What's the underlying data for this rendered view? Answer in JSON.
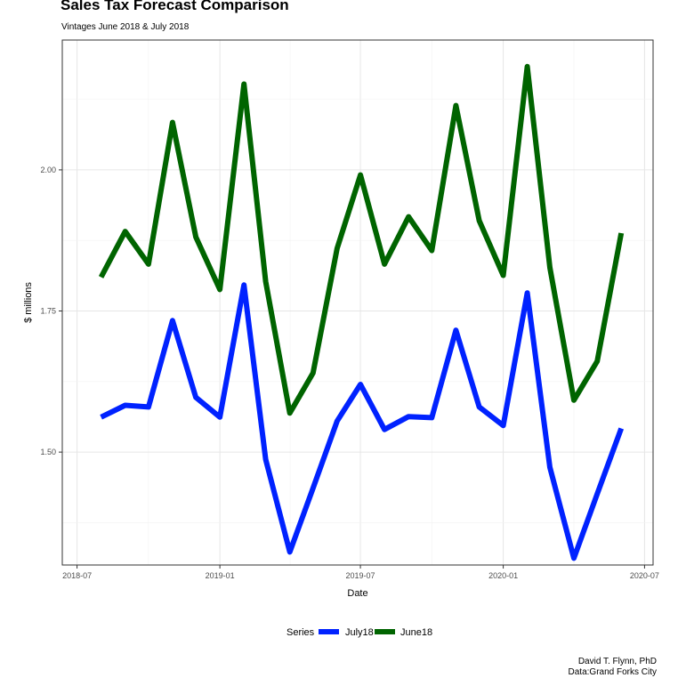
{
  "chart_data": {
    "type": "line",
    "title": "Sales Tax Forecast Comparison",
    "subtitle": "Vintages June 2018 & July 2018",
    "xlabel": "Date",
    "ylabel": "$ millions",
    "x_ticks": [
      "2018-07",
      "2019-01",
      "2019-07",
      "2020-01",
      "2020-07"
    ],
    "y_ticks": [
      "1.50",
      "1.75",
      "2.00"
    ],
    "ylim": [
      1.3,
      2.23
    ],
    "grid": true,
    "legend_title": "Series",
    "legend_position": "bottom",
    "x": [
      "2018-08",
      "2018-09",
      "2018-10",
      "2018-11",
      "2018-12",
      "2019-01",
      "2019-02",
      "2019-03",
      "2019-04",
      "2019-05",
      "2019-06",
      "2019-07",
      "2019-08",
      "2019-09",
      "2019-10",
      "2019-11",
      "2019-12",
      "2020-01",
      "2020-02",
      "2020-03",
      "2020-04",
      "2020-05",
      "2020-06"
    ],
    "series": [
      {
        "name": "July18",
        "color": "#0022ff",
        "values": [
          1.562,
          1.583,
          1.58,
          1.733,
          1.597,
          1.562,
          1.796,
          1.487,
          1.323,
          1.436,
          1.555,
          1.62,
          1.54,
          1.563,
          1.561,
          1.716,
          1.58,
          1.547,
          1.782,
          1.473,
          1.312,
          1.426,
          1.542
        ]
      },
      {
        "name": "June18",
        "color": "#006400",
        "values": [
          1.81,
          1.891,
          1.833,
          2.084,
          1.881,
          1.788,
          2.152,
          1.802,
          1.569,
          1.64,
          1.861,
          1.991,
          1.833,
          1.917,
          1.857,
          2.114,
          1.91,
          1.813,
          2.183,
          1.827,
          1.592,
          1.661,
          1.888
        ]
      }
    ]
  },
  "caption": {
    "author": "David T. Flynn, PhD",
    "source": "Data:Grand Forks City"
  }
}
